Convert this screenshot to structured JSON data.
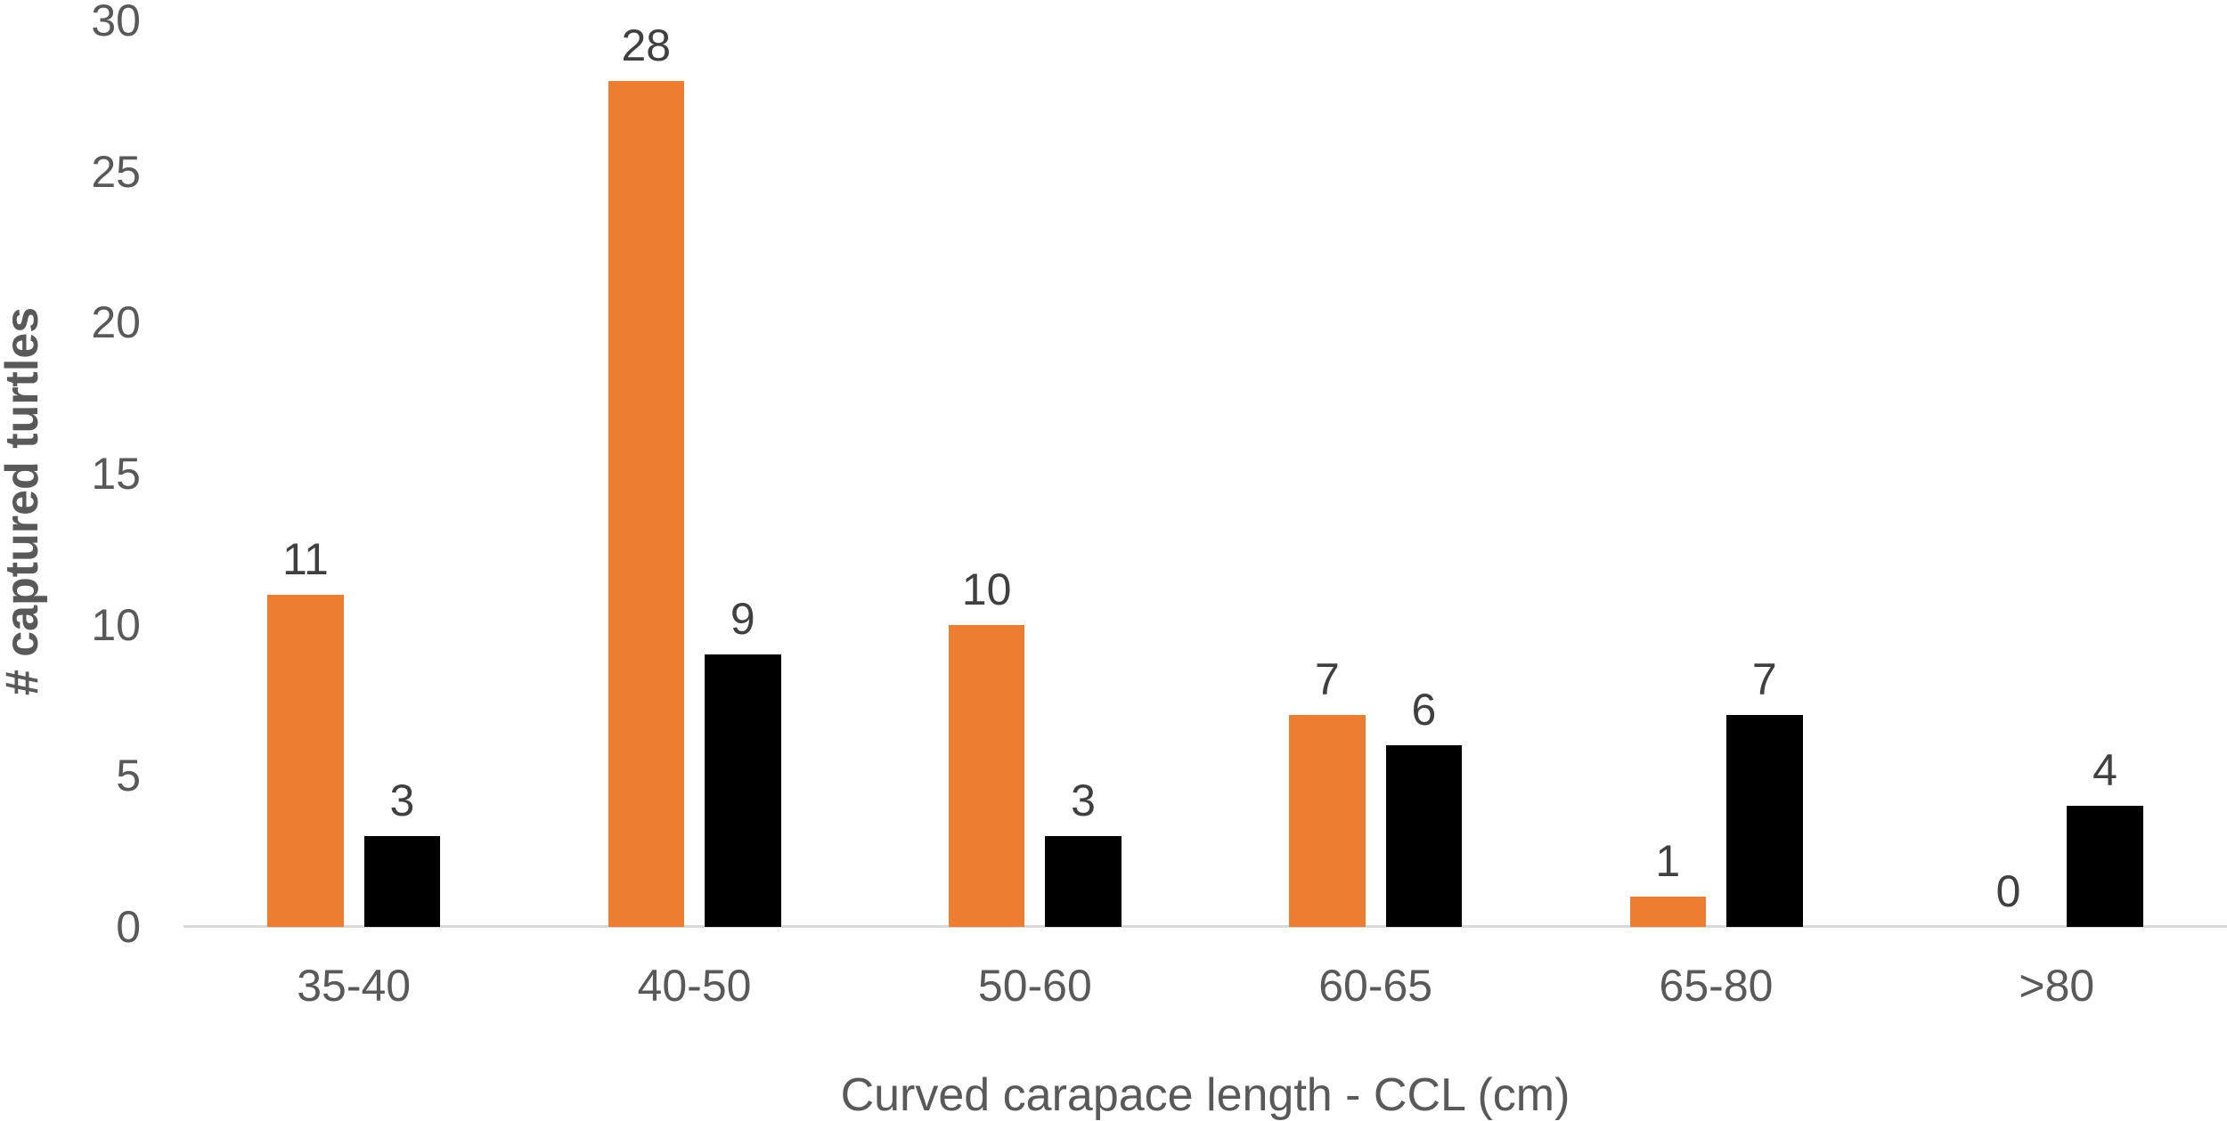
{
  "chart_data": {
    "type": "bar",
    "title": "",
    "xlabel": "Curved carapace length - CCL (cm)",
    "ylabel": "# captured turtles",
    "categories": [
      "35-40",
      "40-50",
      "50-60",
      "60-65",
      "65-80",
      ">80"
    ],
    "series": [
      {
        "name": "Series 1",
        "color": "#ED7D31",
        "values": [
          11,
          28,
          10,
          7,
          1,
          0
        ]
      },
      {
        "name": "Series 2",
        "color": "#000000",
        "values": [
          3,
          9,
          3,
          6,
          7,
          4
        ]
      }
    ],
    "ylim": [
      0,
      30
    ],
    "yticks": [
      0,
      5,
      10,
      15,
      20,
      25,
      30
    ],
    "grid": false,
    "legend": "none",
    "data_labels": true
  },
  "axes": {
    "y_title": "# captured turtles",
    "x_title": "Curved carapace length - CCL (cm)",
    "y_ticks": [
      "0",
      "5",
      "10",
      "15",
      "20",
      "25",
      "30"
    ]
  }
}
